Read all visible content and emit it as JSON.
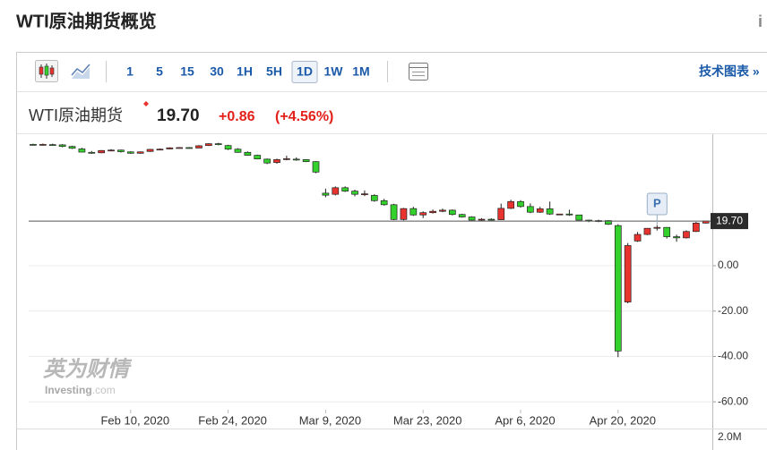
{
  "header": {
    "title": "WTI原油期货概览",
    "info": "i"
  },
  "toolbar": {
    "intervals": [
      "1",
      "5",
      "15",
      "30",
      "1H",
      "5H",
      "1D",
      "1W",
      "1M"
    ],
    "active_index": 6,
    "link": "技术图表 »"
  },
  "chart_data": {
    "type": "candlestick",
    "title": "WTI原油期货",
    "last_price": {
      "value": 19.7,
      "label": "19.70"
    },
    "change": "+0.86",
    "change_pct": "(+4.56%)",
    "annotation": "P",
    "volume_label": "2.0M",
    "watermark": {
      "cn": "英为财情",
      "brand": "Investing",
      "suffix": ".com"
    },
    "up_color": "#e8332f",
    "down_color": "#33d12b",
    "grid": true,
    "x": [
      "2020-01-27",
      "2020-01-28",
      "2020-01-29",
      "2020-01-30",
      "2020-01-31",
      "2020-02-03",
      "2020-02-04",
      "2020-02-05",
      "2020-02-06",
      "2020-02-07",
      "2020-02-10",
      "2020-02-11",
      "2020-02-12",
      "2020-02-13",
      "2020-02-14",
      "2020-02-17",
      "2020-02-18",
      "2020-02-19",
      "2020-02-20",
      "2020-02-21",
      "2020-02-24",
      "2020-02-25",
      "2020-02-26",
      "2020-02-27",
      "2020-02-28",
      "2020-03-02",
      "2020-03-03",
      "2020-03-04",
      "2020-03-05",
      "2020-03-06",
      "2020-03-09",
      "2020-03-10",
      "2020-03-11",
      "2020-03-12",
      "2020-03-13",
      "2020-03-16",
      "2020-03-17",
      "2020-03-18",
      "2020-03-19",
      "2020-03-20",
      "2020-03-23",
      "2020-03-24",
      "2020-03-25",
      "2020-03-26",
      "2020-03-27",
      "2020-03-30",
      "2020-03-31",
      "2020-04-01",
      "2020-04-02",
      "2020-04-03",
      "2020-04-06",
      "2020-04-07",
      "2020-04-08",
      "2020-04-09",
      "2020-04-10",
      "2020-04-13",
      "2020-04-14",
      "2020-04-15",
      "2020-04-16",
      "2020-04-17",
      "2020-04-20",
      "2020-04-21",
      "2020-04-22",
      "2020-04-23",
      "2020-04-24",
      "2020-04-27",
      "2020-04-28",
      "2020-04-29",
      "2020-04-30",
      "2020-05-01"
    ],
    "open": [
      53.5,
      53.2,
      53.4,
      53.3,
      52.6,
      51.5,
      50.0,
      49.8,
      50.8,
      51.0,
      50.2,
      49.6,
      50.4,
      51.3,
      51.5,
      52.0,
      52.1,
      51.9,
      53.0,
      53.8,
      53.0,
      51.4,
      50.0,
      48.7,
      47.0,
      45.5,
      46.9,
      47.0,
      46.8,
      45.9,
      32.0,
      31.5,
      34.4,
      32.9,
      31.6,
      31.0,
      28.7,
      26.9,
      20.4,
      25.2,
      22.4,
      23.4,
      24.0,
      24.5,
      22.6,
      21.5,
      20.1,
      20.5,
      20.3,
      25.3,
      28.3,
      26.1,
      23.6,
      25.1,
      22.8,
      22.8,
      22.4,
      20.1,
      19.9,
      19.9,
      17.7,
      -16.0,
      10.9,
      13.8,
      16.5,
      16.9,
      12.8,
      12.3,
      15.1,
      18.8
    ],
    "high": [
      53.8,
      53.9,
      53.8,
      53.6,
      52.9,
      52.0,
      50.6,
      51.0,
      51.4,
      51.2,
      50.5,
      50.4,
      51.5,
      51.7,
      52.2,
      52.3,
      52.3,
      53.2,
      54.0,
      54.2,
      53.3,
      51.8,
      50.4,
      49.0,
      47.3,
      47.2,
      48.5,
      47.8,
      47.0,
      46.1,
      34.0,
      35.0,
      35.0,
      33.5,
      33.2,
      31.5,
      29.5,
      27.3,
      25.5,
      26.0,
      24.0,
      24.8,
      25.2,
      24.8,
      22.9,
      21.8,
      21.0,
      20.9,
      27.4,
      29.1,
      28.9,
      27.5,
      26.0,
      28.3,
      22.9,
      24.7,
      22.5,
      20.3,
      20.3,
      20.0,
      18.3,
      10.0,
      14.9,
      16.6,
      17.9,
      17.0,
      13.7,
      15.6,
      19.3,
      19.9
    ],
    "low": [
      53.0,
      53.0,
      53.1,
      52.2,
      51.5,
      50.0,
      49.4,
      49.6,
      50.4,
      49.9,
      49.3,
      49.4,
      50.2,
      50.9,
      51.3,
      51.8,
      51.6,
      51.8,
      52.8,
      53.1,
      51.0,
      49.8,
      48.5,
      46.9,
      44.8,
      45.0,
      46.5,
      46.3,
      45.7,
      40.8,
      30.2,
      31.0,
      32.5,
      30.6,
      30.7,
      28.2,
      26.5,
      20.1,
      20.0,
      22.0,
      21.0,
      23.0,
      23.6,
      22.2,
      21.2,
      19.9,
      19.8,
      20.0,
      20.2,
      25.0,
      25.6,
      23.2,
      23.3,
      22.4,
      22.7,
      22.0,
      19.9,
      19.2,
      19.2,
      18.0,
      -40.3,
      -16.6,
      10.5,
      13.5,
      15.5,
      12.0,
      10.6,
      12.0,
      14.9,
      18.6
    ],
    "close": [
      53.2,
      53.5,
      53.3,
      52.6,
      51.8,
      50.1,
      49.6,
      50.8,
      51.0,
      50.3,
      49.6,
      50.2,
      51.3,
      51.4,
      52.0,
      52.1,
      51.9,
      52.9,
      53.8,
      53.4,
      51.4,
      50.0,
      48.7,
      47.1,
      45.3,
      46.8,
      47.2,
      46.8,
      45.9,
      41.3,
      31.1,
      34.4,
      32.9,
      31.5,
      31.7,
      28.7,
      26.9,
      20.4,
      25.2,
      22.4,
      23.4,
      24.0,
      24.5,
      22.6,
      21.5,
      20.1,
      20.5,
      20.3,
      25.3,
      28.3,
      26.1,
      23.6,
      25.1,
      22.8,
      22.8,
      22.4,
      20.1,
      19.9,
      19.9,
      18.3,
      -37.6,
      8.9,
      13.8,
      16.5,
      16.9,
      12.8,
      12.3,
      15.1,
      18.8,
      19.7
    ],
    "ylim": [
      -63.5,
      58
    ],
    "yticks": [
      {
        "value": 0,
        "label": "0.00"
      },
      {
        "value": -20,
        "label": "-20.00"
      },
      {
        "value": -40,
        "label": "-40.00"
      },
      {
        "value": -60,
        "label": "-60.00"
      }
    ],
    "xticks": [
      {
        "value": "2020-02-10",
        "label": "Feb 10, 2020"
      },
      {
        "value": "2020-02-24",
        "label": "Feb 24, 2020"
      },
      {
        "value": "2020-03-09",
        "label": "Mar 9, 2020"
      },
      {
        "value": "2020-03-23",
        "label": "Mar 23, 2020"
      },
      {
        "value": "2020-04-06",
        "label": "Apr 6, 2020"
      },
      {
        "value": "2020-04-20",
        "label": "Apr 20, 2020"
      }
    ]
  }
}
